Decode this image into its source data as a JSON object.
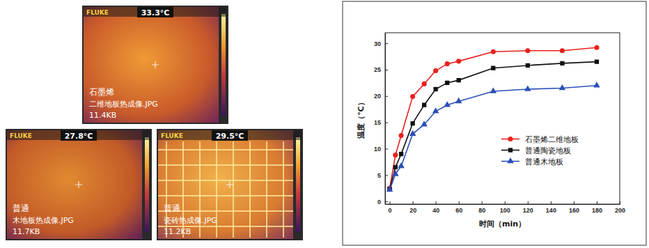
{
  "chart_data": {
    "type": "line",
    "x_label": "时间（min）",
    "y_label": "温度（℃）",
    "x": [
      0,
      5,
      10,
      20,
      30,
      40,
      50,
      60,
      90,
      120,
      150,
      180
    ],
    "series": [
      {
        "name": "石墨烯二维地板",
        "color": "#e8201e",
        "marker": "circle",
        "line_style": "solid",
        "values": [
          2.5,
          8.8,
          12.5,
          19.9,
          22.3,
          24.8,
          26.1,
          26.6,
          28.4,
          28.6,
          28.6,
          29.2
        ]
      },
      {
        "name": "普通陶瓷地板",
        "color": "#111111",
        "marker": "square",
        "line_style": "solid",
        "values": [
          2.3,
          6.5,
          9.0,
          14.8,
          18.3,
          21.3,
          22.5,
          23.0,
          25.3,
          25.8,
          26.2,
          26.5
        ]
      },
      {
        "name": "普通木地板",
        "color": "#2a4fb8",
        "marker": "triangle",
        "line_style": "solid",
        "values": [
          2.2,
          5.2,
          6.7,
          12.8,
          14.6,
          17.1,
          18.3,
          19.0,
          20.9,
          21.3,
          21.5,
          22.0
        ]
      }
    ],
    "xlim": [
      -4,
      200
    ],
    "xticks": [
      0,
      20,
      40,
      60,
      80,
      100,
      120,
      140,
      160,
      180,
      200
    ],
    "ylim": [
      -0.5,
      32
    ],
    "yticks": [
      0,
      5,
      10,
      15,
      20,
      25,
      30
    ],
    "grid": false,
    "legend": "center right"
  },
  "thermal_images": [
    {
      "brand": "FLUKE",
      "temperature": "33.3°C",
      "label": "石墨烯",
      "file": "二维地板热成像.JPG",
      "size": "11.4KB"
    },
    {
      "brand": "FLUKE",
      "temperature": "27.8°C",
      "label": "普通",
      "file": "木地板热成像.JPG",
      "size": "11.7KB"
    },
    {
      "brand": "FLUKE",
      "temperature": "29.5°C",
      "label": "普通",
      "file": "瓷砖热成像.JPG",
      "size": "11.2KB"
    }
  ]
}
